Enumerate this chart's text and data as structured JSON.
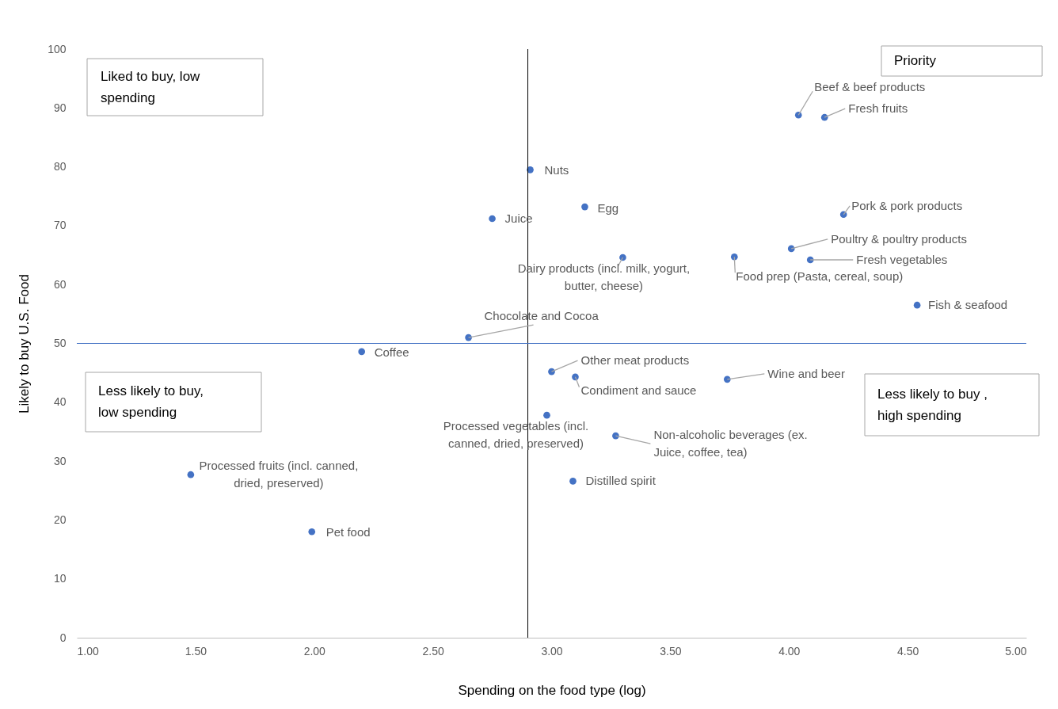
{
  "chart_data": {
    "type": "scatter",
    "xlabel": "Spending on the food type (log)",
    "ylabel": "Likely to buy U.S. Food",
    "x": [
      4.04,
      4.15,
      2.91,
      3.14,
      2.75,
      4.23,
      4.01,
      4.09,
      3.77,
      3.3,
      4.54,
      2.65,
      2.2,
      3.0,
      3.1,
      3.74,
      2.98,
      3.27,
      3.09,
      1.48,
      1.99
    ],
    "series": [
      {
        "color": "#4472c4",
        "values": [
          88.8,
          88.4,
          79.5,
          73.2,
          71.2,
          71.9,
          66.1,
          64.2,
          64.7,
          64.6,
          56.5,
          51.0,
          48.6,
          45.2,
          44.3,
          43.9,
          37.8,
          34.3,
          26.6,
          27.7,
          18.0
        ]
      }
    ],
    "marker": "circle",
    "grid": false,
    "xlim": [
      1,
      5
    ],
    "xticks": [
      {
        "value": 1,
        "label": "1.00"
      },
      {
        "value": 1.5,
        "label": "1.50"
      },
      {
        "value": 2,
        "label": "2.00"
      },
      {
        "value": 2.5,
        "label": "2.50"
      },
      {
        "value": 3,
        "label": "3.00"
      },
      {
        "value": 3.5,
        "label": "3.50"
      },
      {
        "value": 4,
        "label": "4.00"
      },
      {
        "value": 4.5,
        "label": "4.50"
      },
      {
        "value": 5,
        "label": "5.00"
      }
    ],
    "ylim": [
      0,
      100
    ],
    "yticks": [
      0,
      10,
      20,
      30,
      40,
      50,
      60,
      70,
      80,
      90,
      100
    ],
    "ref_lines": [
      {
        "axis": "x",
        "value": 2.9,
        "color": "#000000"
      },
      {
        "axis": "y",
        "value": 50,
        "color": "#4472c4"
      }
    ],
    "annotations": [
      "Liked to buy, low spending",
      "Priority",
      "Less likely to buy, low spending",
      "Less likely to buy , high spending",
      {
        "text": "Beef & beef products",
        "x": 4.04,
        "y": 88.8
      },
      {
        "text": "Fresh fruits",
        "x": 4.15,
        "y": 88.4
      },
      {
        "text": "Nuts",
        "x": 2.91,
        "y": 79.5
      },
      {
        "text": "Egg",
        "x": 3.14,
        "y": 73.2
      },
      {
        "text": "Juice",
        "x": 2.75,
        "y": 71.2
      },
      {
        "text": "Pork & pork products",
        "x": 4.23,
        "y": 71.9
      },
      {
        "text": "Poultry & poultry products",
        "x": 4.01,
        "y": 66.1
      },
      {
        "text": "Fresh vegetables",
        "x": 4.09,
        "y": 64.2
      },
      {
        "text": "Food prep (Pasta, cereal, soup)",
        "x": 3.77,
        "y": 64.7
      },
      {
        "text": "Dairy products (incl. milk, yogurt, butter, cheese)",
        "x": 3.3,
        "y": 64.6
      },
      {
        "text": "Fish & seafood",
        "x": 4.54,
        "y": 56.5
      },
      {
        "text": "Chocolate and Cocoa",
        "x": 2.65,
        "y": 51.0
      },
      {
        "text": "Coffee",
        "x": 2.2,
        "y": 48.6
      },
      {
        "text": "Other meat products",
        "x": 3.0,
        "y": 45.2
      },
      {
        "text": "Condiment and sauce",
        "x": 3.1,
        "y": 44.3
      },
      {
        "text": "Wine and beer",
        "x": 3.74,
        "y": 43.9
      },
      {
        "text": "Processed vegetables (incl. canned, dried, preserved)",
        "x": 2.98,
        "y": 37.8
      },
      {
        "text": "Non-alcoholic beverages (ex. Juice, coffee, tea)",
        "x": 3.27,
        "y": 34.3
      },
      {
        "text": "Distilled spirit",
        "x": 3.09,
        "y": 26.6
      },
      {
        "text": "Processed fruits (incl. canned, dried, preserved)",
        "x": 1.48,
        "y": 27.7
      },
      {
        "text": "Pet food",
        "x": 1.99,
        "y": 18.0
      }
    ]
  }
}
